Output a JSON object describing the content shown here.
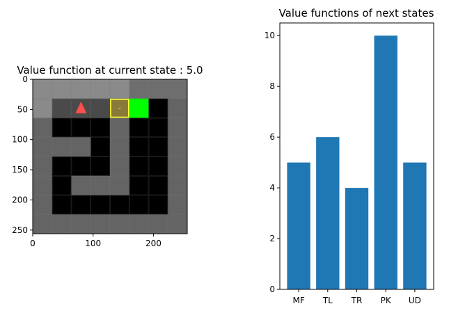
{
  "chart_data": [
    {
      "type": "heatmap",
      "title": "Value function at current state : 5.0",
      "xlim": [
        0,
        256
      ],
      "ylim": [
        256,
        0
      ],
      "xticks": [
        0,
        100,
        200
      ],
      "yticks": [
        0,
        50,
        100,
        150,
        200,
        250
      ],
      "grid": false,
      "cell_size": 32,
      "rows": 8,
      "cols": 8,
      "cells": [
        [
          "#8a8a8a",
          "#8a8a8a",
          "#8a8a8a",
          "#8a8a8a",
          "#8a8a8a",
          "#6e6e6e",
          "#6e6e6e",
          "#6e6e6e"
        ],
        [
          "#8a8a8a",
          "#4a4a4a",
          "#4a4a4a",
          "#4a4a4a",
          "#8a7a3a",
          "#00ff00",
          "#000000",
          "#646464"
        ],
        [
          "#646464",
          "#000000",
          "#000000",
          "#000000",
          "#646464",
          "#000000",
          "#000000",
          "#646464"
        ],
        [
          "#646464",
          "#646464",
          "#646464",
          "#000000",
          "#646464",
          "#000000",
          "#000000",
          "#646464"
        ],
        [
          "#646464",
          "#000000",
          "#000000",
          "#000000",
          "#646464",
          "#000000",
          "#000000",
          "#646464"
        ],
        [
          "#646464",
          "#000000",
          "#646464",
          "#646464",
          "#646464",
          "#000000",
          "#000000",
          "#646464"
        ],
        [
          "#646464",
          "#000000",
          "#000000",
          "#000000",
          "#000000",
          "#000000",
          "#000000",
          "#646464"
        ],
        [
          "#646464",
          "#646464",
          "#646464",
          "#646464",
          "#646464",
          "#646464",
          "#646464",
          "#646464"
        ]
      ],
      "agent": {
        "row": 1,
        "col": 2,
        "color": "#ff4d4d",
        "icon": "triangle-up"
      },
      "highlight": {
        "row": 1,
        "col": 4,
        "color": "#ffff33",
        "mark": "-"
      },
      "goal": {
        "row": 1,
        "col": 5,
        "color": "#00ff00"
      }
    },
    {
      "type": "bar",
      "title": "Value functions of next states",
      "categories": [
        "MF",
        "TL",
        "TR",
        "PK",
        "UD"
      ],
      "values": [
        5,
        6,
        4,
        10,
        5
      ],
      "ylim": [
        0,
        10.5
      ],
      "yticks": [
        0,
        2,
        4,
        6,
        8,
        10
      ],
      "color": "#1f77b4",
      "grid": false
    }
  ]
}
